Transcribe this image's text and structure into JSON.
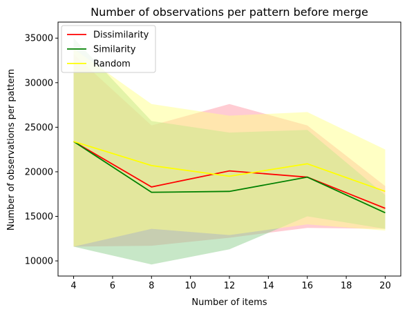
{
  "chart_data": {
    "type": "line",
    "title": "Number of observations per pattern before merge",
    "xlabel": "Number of items",
    "ylabel": "Number of observations per pattern",
    "x": [
      4,
      8,
      12,
      16,
      20
    ],
    "xlim": [
      3.2,
      20.8
    ],
    "ylim": [
      8300,
      36800
    ],
    "xticks": [
      4,
      6,
      8,
      10,
      12,
      14,
      16,
      18,
      20
    ],
    "yticks": [
      10000,
      15000,
      20000,
      25000,
      30000,
      35000
    ],
    "grid": false,
    "legend_position": "top-left",
    "series": [
      {
        "name": "Dissimilarity",
        "color": "#ff0000",
        "band_color": "#ff9aa8",
        "values": [
          23400,
          18300,
          20100,
          19400,
          15900
        ],
        "upper": [
          33200,
          25200,
          27600,
          25200,
          18400
        ],
        "lower": [
          11600,
          11700,
          12600,
          13700,
          13600
        ]
      },
      {
        "name": "Similarity",
        "color": "#008000",
        "band_color": "#8fcf8f",
        "values": [
          23400,
          17700,
          17800,
          19400,
          15400
        ],
        "upper": [
          35000,
          25700,
          24400,
          24700,
          17400
        ],
        "lower": [
          11600,
          9600,
          11300,
          15000,
          13600
        ]
      },
      {
        "name": "Random",
        "color": "#ffff00",
        "band_color": "#ffff8a",
        "values": [
          23400,
          20700,
          19500,
          20900,
          17800
        ],
        "upper": [
          33800,
          27600,
          26300,
          26700,
          22500
        ],
        "lower": [
          11600,
          13600,
          12900,
          14100,
          13400
        ]
      }
    ]
  }
}
